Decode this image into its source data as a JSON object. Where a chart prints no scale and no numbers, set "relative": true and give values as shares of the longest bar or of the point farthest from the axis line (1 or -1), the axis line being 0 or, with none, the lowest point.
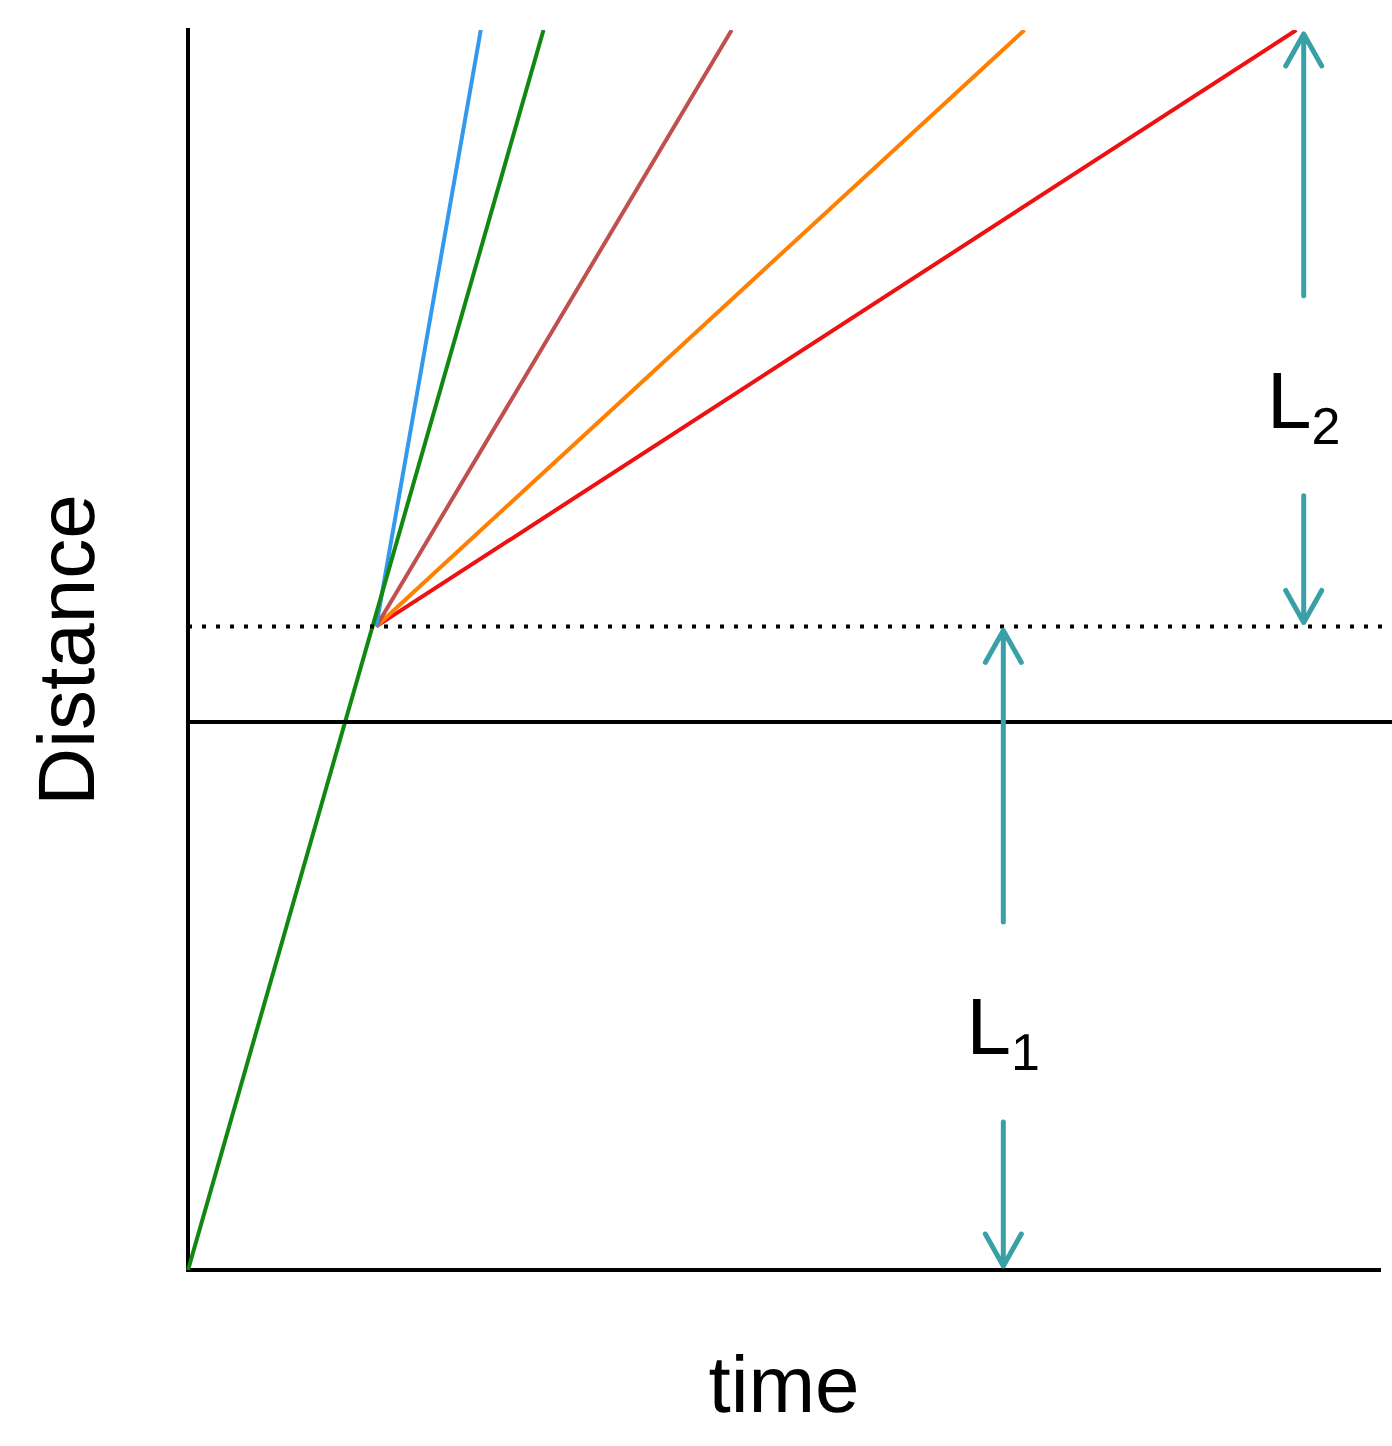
{
  "chart_data": {
    "type": "line",
    "relative": true,
    "xlabel": "time",
    "ylabel": "Distance",
    "marker": "none",
    "categories": [
      null,
      null,
      null,
      null,
      null,
      null,
      null,
      null,
      null,
      null,
      null,
      null,
      null,
      null,
      null,
      null,
      null,
      null,
      null,
      null,
      null,
      null,
      null,
      null,
      null,
      null,
      null,
      null,
      null,
      null,
      null,
      null,
      null,
      null,
      null,
      null,
      null,
      null,
      null,
      null,
      null,
      null,
      null,
      null,
      null,
      null,
      null,
      null,
      null,
      null,
      null,
      null,
      null,
      null,
      null,
      null,
      null,
      null
    ],
    "series": [
      {
        "color": "#118811",
        "values": [
          0,
          null,
          null,
          null,
          null,
          null,
          null,
          null,
          null,
          null,
          null,
          null,
          null,
          null,
          null,
          null,
          null,
          1,
          null,
          null,
          null,
          null,
          null,
          null,
          null,
          null,
          null,
          null,
          null,
          null,
          null,
          null,
          null,
          null,
          null,
          null,
          null,
          null,
          null,
          null,
          null,
          null,
          null,
          null,
          null,
          null,
          null,
          null,
          null,
          null,
          null,
          null,
          null,
          null,
          null,
          null,
          null,
          null
        ]
      },
      {
        "color": "#3399ee",
        "values": [
          null,
          null,
          null,
          null,
          null,
          null,
          null,
          null,
          null,
          0.519,
          null,
          null,
          null,
          null,
          1,
          null,
          null,
          null,
          null,
          null,
          null,
          null,
          null,
          null,
          null,
          null,
          null,
          null,
          null,
          null,
          null,
          null,
          null,
          null,
          null,
          null,
          null,
          null,
          null,
          null,
          null,
          null,
          null,
          null,
          null,
          null,
          null,
          null,
          null,
          null,
          null,
          null,
          null,
          null,
          null,
          null,
          null,
          null
        ]
      },
      {
        "color": "#c0504d",
        "values": [
          null,
          null,
          null,
          null,
          null,
          null,
          null,
          null,
          null,
          0.519,
          null,
          null,
          null,
          null,
          null,
          null,
          null,
          null,
          null,
          null,
          null,
          null,
          null,
          null,
          null,
          null,
          1,
          null,
          null,
          null,
          null,
          null,
          null,
          null,
          null,
          null,
          null,
          null,
          null,
          null,
          null,
          null,
          null,
          null,
          null,
          null,
          null,
          null,
          null,
          null,
          null,
          null,
          null,
          null,
          null,
          null,
          null,
          null
        ]
      },
      {
        "color": "#ff8000",
        "values": [
          null,
          null,
          null,
          null,
          null,
          null,
          null,
          null,
          null,
          0.519,
          null,
          null,
          null,
          null,
          null,
          null,
          null,
          null,
          null,
          null,
          null,
          null,
          null,
          null,
          null,
          null,
          null,
          null,
          null,
          null,
          null,
          null,
          null,
          null,
          null,
          null,
          null,
          null,
          null,
          null,
          1,
          null,
          null,
          null,
          null,
          null,
          null,
          null,
          null,
          null,
          null,
          null,
          null,
          null,
          null,
          null,
          null,
          null
        ]
      },
      {
        "color": "#ee1111",
        "values": [
          null,
          null,
          null,
          null,
          null,
          null,
          null,
          null,
          null,
          0.519,
          null,
          null,
          null,
          null,
          null,
          null,
          null,
          null,
          null,
          null,
          null,
          null,
          null,
          null,
          null,
          null,
          null,
          null,
          null,
          null,
          null,
          null,
          null,
          null,
          null,
          null,
          null,
          null,
          null,
          null,
          null,
          null,
          null,
          null,
          null,
          null,
          null,
          null,
          null,
          null,
          null,
          null,
          null,
          1,
          null,
          null,
          null,
          null
        ]
      }
    ],
    "ref_lines": [
      {
        "axis": "y",
        "value": 0.442,
        "color": "#000000",
        "line_style": "solid"
      },
      {
        "axis": "y",
        "value": 0.519,
        "color": "#000000",
        "line_style": "dotted"
      }
    ],
    "annotations": [
      "L$_{1}$",
      "L$_{2}$"
    ]
  }
}
